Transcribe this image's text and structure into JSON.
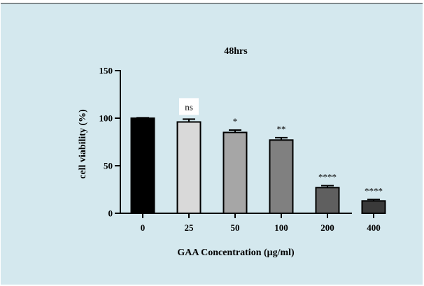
{
  "chart_data": {
    "type": "bar",
    "title": "48hrs",
    "xlabel": "GAA Concentration (μg/ml)",
    "ylabel": "cell viability (%)",
    "categories": [
      "0",
      "25",
      "50",
      "100",
      "200",
      "400"
    ],
    "values": [
      100,
      96,
      85,
      77,
      27,
      13
    ],
    "errors": [
      0.5,
      3,
      2.5,
      2.5,
      2,
      1.5
    ],
    "significance": [
      "",
      "ns",
      "*",
      "**",
      "****",
      "****"
    ],
    "bar_colors": [
      "#000000",
      "#d9d9d9",
      "#a6a6a6",
      "#808080",
      "#5f5f5f",
      "#3a3a3a"
    ],
    "ylim": [
      0,
      150
    ],
    "yticks": [
      0,
      50,
      100,
      150
    ],
    "grid": false,
    "legend": "none"
  }
}
